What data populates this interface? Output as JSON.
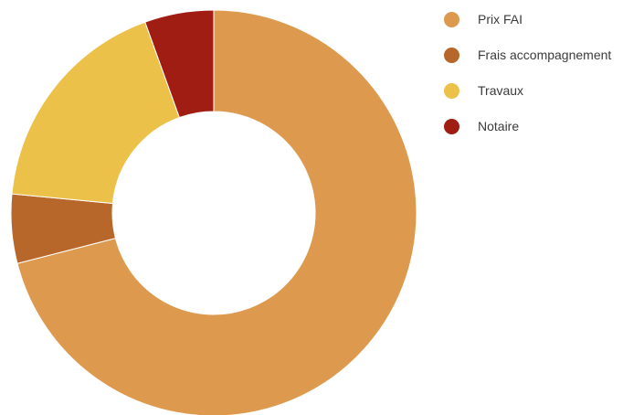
{
  "chart_data": {
    "type": "pie",
    "variant": "donut",
    "title": "",
    "legend_position": "top-right",
    "series": [
      {
        "slices": [
          {
            "label": "Prix FAI",
            "value": 71.0,
            "color": "#DD9A4E"
          },
          {
            "label": "Frais accompagnement",
            "value": 5.5,
            "color": "#B7672A"
          },
          {
            "label": "Travaux",
            "value": 18.0,
            "color": "#EBC149"
          },
          {
            "label": "Notaire",
            "value": 5.5,
            "color": "#A01D14"
          }
        ]
      }
    ]
  }
}
